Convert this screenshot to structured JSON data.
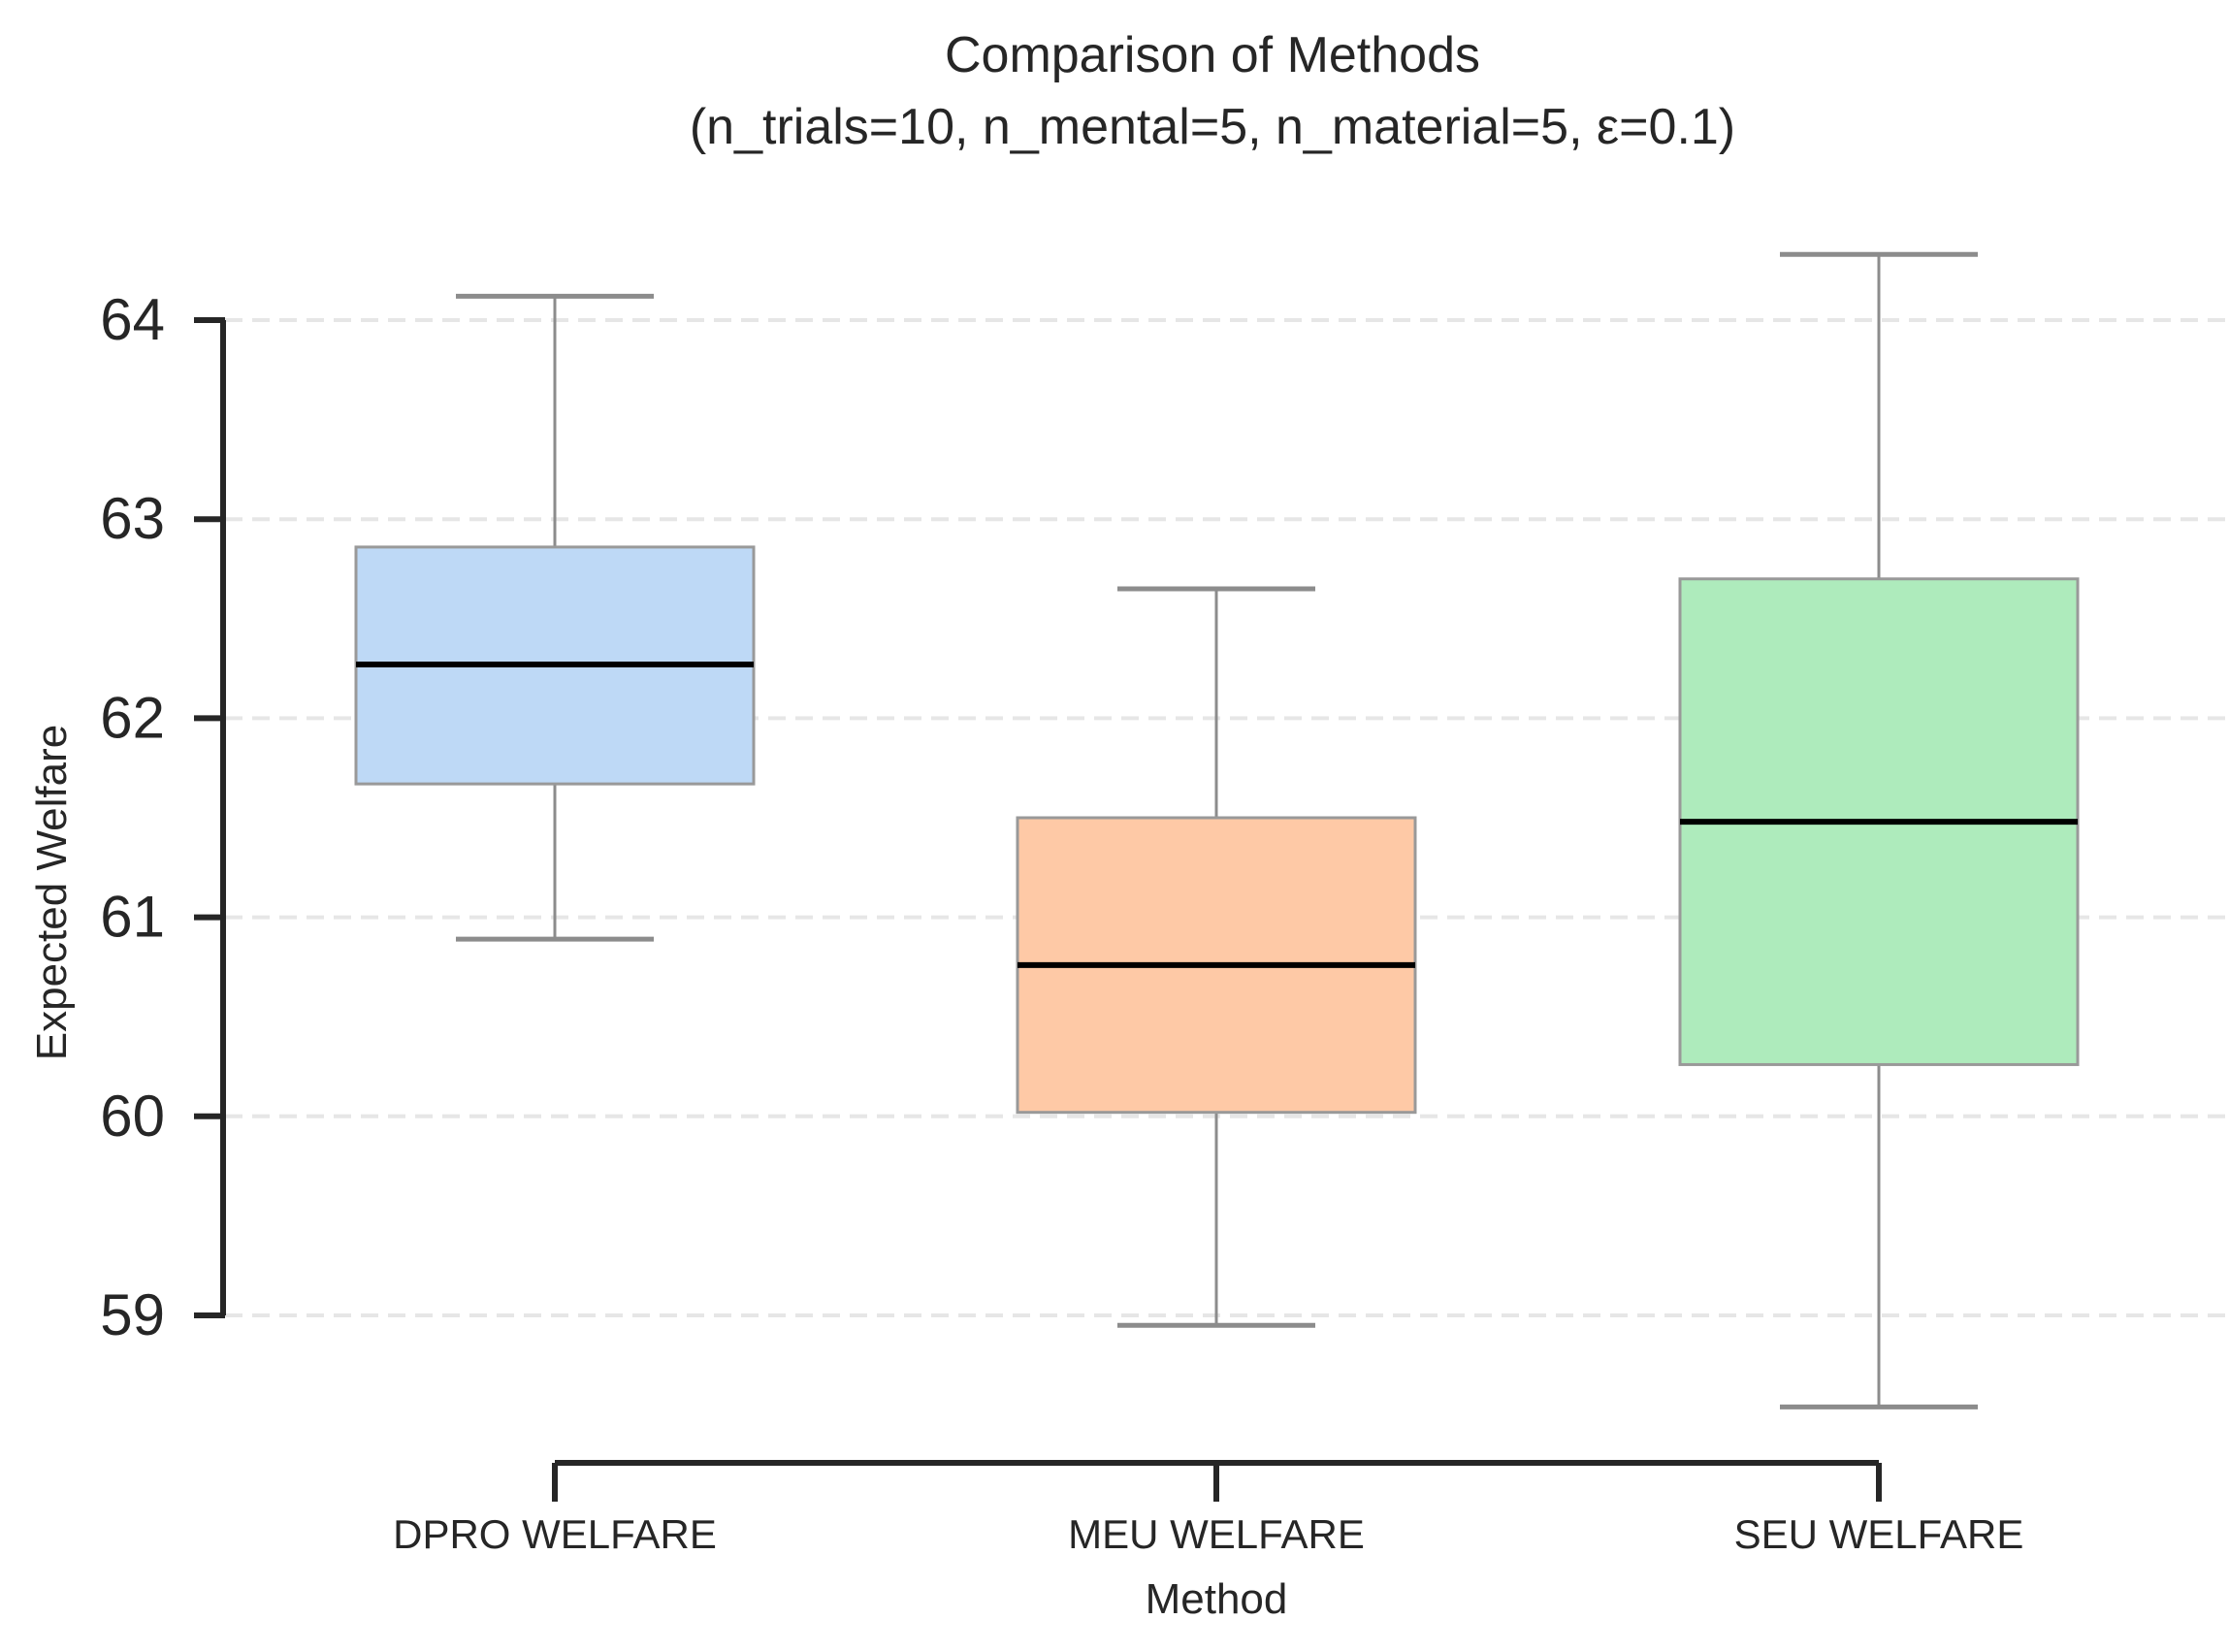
{
  "chart_data": {
    "type": "box",
    "title_line1": "Comparison of Methods",
    "title_line2": "(n_trials=10, n_mental=5, n_material=5, ε=0.1)",
    "xlabel": "Method",
    "ylabel": "Expected Welfare",
    "ylim": [
      58.5,
      64.4
    ],
    "yticks": [
      59,
      60,
      61,
      62,
      63,
      64
    ],
    "grid": "horizontal-dashed",
    "categories": [
      "DPRO WELFARE",
      "MEU WELFARE",
      "SEU WELFARE"
    ],
    "boxes": [
      {
        "name": "DPRO WELFARE",
        "whisker_low": 60.89,
        "q1": 61.67,
        "median": 62.27,
        "q3": 62.86,
        "whisker_high": 64.12,
        "color": "#bed9f6"
      },
      {
        "name": "MEU WELFARE",
        "whisker_low": 58.95,
        "q1": 60.02,
        "median": 60.76,
        "q3": 61.5,
        "whisker_high": 62.65,
        "color": "#fec9a6"
      },
      {
        "name": "SEU WELFARE",
        "whisker_low": 58.54,
        "q1": 60.26,
        "median": 61.48,
        "q3": 62.7,
        "whisker_high": 64.33,
        "color": "#aeebbc"
      }
    ],
    "edge_color": "#8c8c8c",
    "median_color": "#000000"
  }
}
